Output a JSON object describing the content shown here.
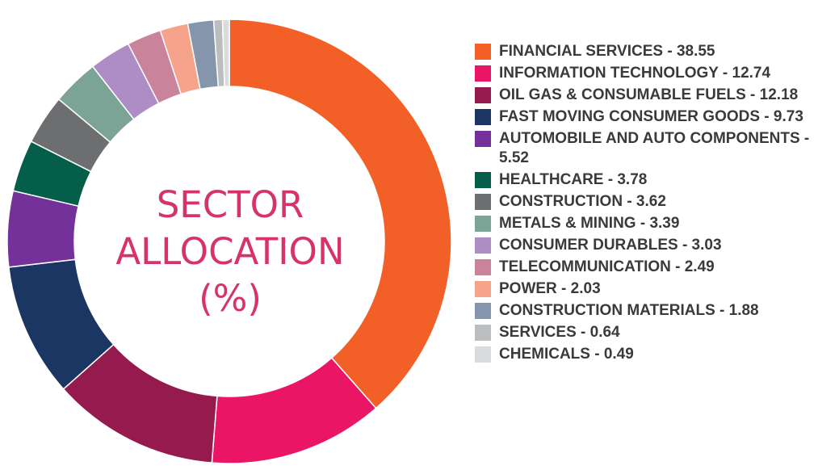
{
  "chart_data": {
    "type": "pie",
    "title_lines": [
      "SECTOR",
      "ALLOCATION",
      "(%)"
    ],
    "legend_position": "right",
    "slices": [
      {
        "label": "FINANCIAL SERVICES - 38.55",
        "value": 38.55,
        "color": "#f26027"
      },
      {
        "label": "INFORMATION TECHNOLOGY - 12.74",
        "value": 12.74,
        "color": "#eb1565"
      },
      {
        "label": "OIL GAS & CONSUMABLE FUELS - 12.18",
        "value": 12.18,
        "color": "#951b4e"
      },
      {
        "label": "FAST MOVING CONSUMER GOODS - 9.73",
        "value": 9.73,
        "color": "#1b3663"
      },
      {
        "label": "AUTOMOBILE AND AUTO COMPONENTS - 5.52",
        "value": 5.52,
        "color": "#74319a"
      },
      {
        "label": "HEALTHCARE - 3.78",
        "value": 3.78,
        "color": "#045e49"
      },
      {
        "label": "CONSTRUCTION - 3.62",
        "value": 3.62,
        "color": "#6d6e70"
      },
      {
        "label": "METALS & MINING - 3.39",
        "value": 3.39,
        "color": "#7ba497"
      },
      {
        "label": "CONSUMER DURABLES - 3.03",
        "value": 3.03,
        "color": "#ad8dc4"
      },
      {
        "label": "TELECOMMUNICATION - 2.49",
        "value": 2.49,
        "color": "#c9849c"
      },
      {
        "label": "POWER - 2.03",
        "value": 2.03,
        "color": "#f6a38c"
      },
      {
        "label": "CONSTRUCTION MATERIALS - 1.88",
        "value": 1.88,
        "color": "#8595ac"
      },
      {
        "label": "SERVICES - 0.64",
        "value": 0.64,
        "color": "#bcbdbf"
      },
      {
        "label": "CHEMICALS - 0.49",
        "value": 0.49,
        "color": "#dadbdc"
      }
    ]
  }
}
